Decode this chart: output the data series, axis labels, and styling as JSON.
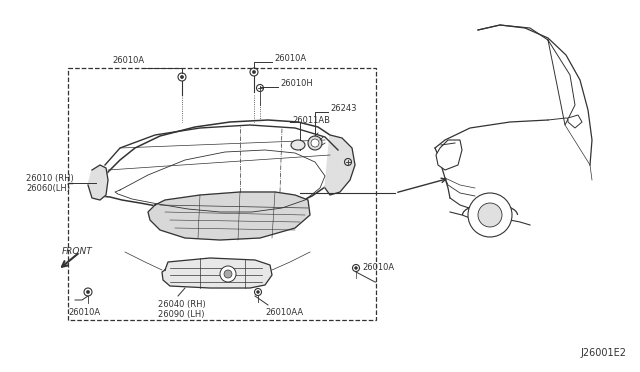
{
  "bg_color": "#ffffff",
  "title_code": "J26001E2",
  "line_color": "#333333",
  "text_color": "#333333",
  "font_size": 6.0,
  "labels": {
    "26010A_top_left": "26010A",
    "26010A_top_center": "26010A",
    "26010H": "26010H",
    "26243": "26243",
    "26011AB": "26011AB",
    "26010_RH": "26010 (RH)",
    "26060_LH": "26060(LH)",
    "26040_RH": "26040 (RH)",
    "26090_LH": "26090 (LH)",
    "26010AA": "26010AA",
    "26010A_bot_left": "26010A",
    "26010A_bot_right": "26010A",
    "FRONT": "FRONT"
  }
}
